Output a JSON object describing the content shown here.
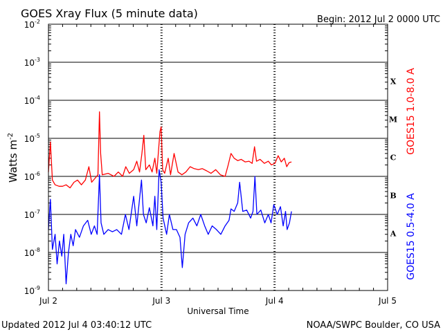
{
  "header": {
    "title": "GOES Xray Flux (5 minute data)",
    "begin": "Begin:  2012 Jul 2 0000 UTC"
  },
  "footer": {
    "updated": "Updated 2012 Jul  4 03:40:12 UTC",
    "source": "NOAA/SWPC Boulder, CO USA"
  },
  "chart_data": {
    "type": "line",
    "xlabel": "Universal Time",
    "ylabel_base": "Watts m",
    "ylabel_exp": "-2",
    "y_scale": "log",
    "ylim": [
      1e-09,
      0.01
    ],
    "xlim": [
      "2012-07-02T00:00Z",
      "2012-07-05T00:00Z"
    ],
    "grid": true,
    "x_ticks": [
      {
        "label": "Jul 2",
        "t": "2012-07-02T00:00Z"
      },
      {
        "label": "Jul 3",
        "t": "2012-07-03T00:00Z"
      },
      {
        "label": "Jul 4",
        "t": "2012-07-04T00:00Z"
      },
      {
        "label": "Jul 5",
        "t": "2012-07-05T00:00Z"
      }
    ],
    "y_ticks": [
      {
        "exp": -9
      },
      {
        "exp": -8
      },
      {
        "exp": -7
      },
      {
        "exp": -6
      },
      {
        "exp": -5
      },
      {
        "exp": -4
      },
      {
        "exp": -3
      },
      {
        "exp": -2
      }
    ],
    "flare_classes": [
      {
        "label": "X",
        "flux": 0.0001
      },
      {
        "label": "M",
        "flux": 1e-05
      },
      {
        "label": "C",
        "flux": 1e-06
      },
      {
        "label": "B",
        "flux": 1e-07
      },
      {
        "label": "A",
        "flux": 1e-08
      }
    ],
    "series": [
      {
        "name": "GOES15 1.0-8.0 A",
        "color": "#ff0000",
        "points": [
          [
            "2012-07-02T00:00Z",
            1.3e-06
          ],
          [
            "2012-07-02T00:25Z",
            8e-06
          ],
          [
            "2012-07-02T00:50Z",
            8e-07
          ],
          [
            "2012-07-02T01:25Z",
            6e-07
          ],
          [
            "2012-07-02T02:15Z",
            5.5e-07
          ],
          [
            "2012-07-02T03:00Z",
            5.5e-07
          ],
          [
            "2012-07-02T03:45Z",
            6e-07
          ],
          [
            "2012-07-02T04:35Z",
            5e-07
          ],
          [
            "2012-07-02T05:25Z",
            7e-07
          ],
          [
            "2012-07-02T06:10Z",
            8e-07
          ],
          [
            "2012-07-02T07:00Z",
            6e-07
          ],
          [
            "2012-07-02T07:50Z",
            8e-07
          ],
          [
            "2012-07-02T08:35Z",
            1.8e-06
          ],
          [
            "2012-07-02T09:10Z",
            7e-07
          ],
          [
            "2012-07-02T09:55Z",
            9e-07
          ],
          [
            "2012-07-02T10:30Z",
            1.1e-06
          ],
          [
            "2012-07-02T10:50Z",
            5e-05
          ],
          [
            "2012-07-02T11:05Z",
            4e-06
          ],
          [
            "2012-07-02T11:25Z",
            1.1e-06
          ],
          [
            "2012-07-02T12:40Z",
            1.2e-06
          ],
          [
            "2012-07-02T13:55Z",
            1e-06
          ],
          [
            "2012-07-02T14:50Z",
            1.3e-06
          ],
          [
            "2012-07-02T15:45Z",
            1e-06
          ],
          [
            "2012-07-02T16:25Z",
            1.8e-06
          ],
          [
            "2012-07-02T17:10Z",
            1.2e-06
          ],
          [
            "2012-07-02T18:05Z",
            1.5e-06
          ],
          [
            "2012-07-02T18:45Z",
            2.5e-06
          ],
          [
            "2012-07-02T19:20Z",
            1.3e-06
          ],
          [
            "2012-07-02T19:50Z",
            4e-06
          ],
          [
            "2012-07-02T20:15Z",
            1.2e-05
          ],
          [
            "2012-07-02T20:40Z",
            1.5e-06
          ],
          [
            "2012-07-02T21:25Z",
            2e-06
          ],
          [
            "2012-07-02T22:00Z",
            1.3e-06
          ],
          [
            "2012-07-02T22:35Z",
            3e-06
          ],
          [
            "2012-07-02T23:00Z",
            1.2e-06
          ],
          [
            "2012-07-02T23:40Z",
            1.5e-05
          ],
          [
            "2012-07-02T23:55Z",
            2e-05
          ],
          [
            "2012-07-03T00:15Z",
            1.5e-06
          ],
          [
            "2012-07-03T00:40Z",
            1.2e-06
          ],
          [
            "2012-07-03T01:25Z",
            3e-06
          ],
          [
            "2012-07-03T01:55Z",
            1.1e-06
          ],
          [
            "2012-07-03T02:40Z",
            4e-06
          ],
          [
            "2012-07-03T03:30Z",
            1.3e-06
          ],
          [
            "2012-07-03T04:20Z",
            1.1e-06
          ],
          [
            "2012-07-03T05:10Z",
            1.3e-06
          ],
          [
            "2012-07-03T06:05Z",
            1.8e-06
          ],
          [
            "2012-07-03T06:55Z",
            1.6e-06
          ],
          [
            "2012-07-03T07:50Z",
            1.5e-06
          ],
          [
            "2012-07-03T08:40Z",
            1.6e-06
          ],
          [
            "2012-07-03T09:35Z",
            1.4e-06
          ],
          [
            "2012-07-03T10:30Z",
            1.2e-06
          ],
          [
            "2012-07-03T11:30Z",
            1.5e-06
          ],
          [
            "2012-07-03T12:30Z",
            1.1e-06
          ],
          [
            "2012-07-03T13:30Z",
            1e-06
          ],
          [
            "2012-07-03T14:10Z",
            2e-06
          ],
          [
            "2012-07-03T14:45Z",
            4e-06
          ],
          [
            "2012-07-03T15:25Z",
            3e-06
          ],
          [
            "2012-07-03T16:10Z",
            2.6e-06
          ],
          [
            "2012-07-03T16:55Z",
            2.8e-06
          ],
          [
            "2012-07-03T17:45Z",
            2.4e-06
          ],
          [
            "2012-07-03T18:35Z",
            2.5e-06
          ],
          [
            "2012-07-03T19:15Z",
            2.2e-06
          ],
          [
            "2012-07-03T19:45Z",
            6e-06
          ],
          [
            "2012-07-03T20:10Z",
            2.5e-06
          ],
          [
            "2012-07-03T20:55Z",
            2.8e-06
          ],
          [
            "2012-07-03T21:50Z",
            2.2e-06
          ],
          [
            "2012-07-03T22:40Z",
            2.5e-06
          ],
          [
            "2012-07-03T23:20Z",
            2e-06
          ],
          [
            "2012-07-04T00:05Z",
            2.2e-06
          ],
          [
            "2012-07-04T00:45Z",
            3.5e-06
          ],
          [
            "2012-07-04T01:25Z",
            2.4e-06
          ],
          [
            "2012-07-04T02:05Z",
            3e-06
          ],
          [
            "2012-07-04T02:35Z",
            1.8e-06
          ],
          [
            "2012-07-04T03:05Z",
            2.3e-06
          ],
          [
            "2012-07-04T03:35Z",
            2.4e-06
          ]
        ]
      },
      {
        "name": "GOES15 0.5-4.0 A",
        "color": "#0000ff",
        "points": [
          [
            "2012-07-02T00:00Z",
            4e-08
          ],
          [
            "2012-07-02T00:25Z",
            2.5e-07
          ],
          [
            "2012-07-02T00:50Z",
            1.2e-08
          ],
          [
            "2012-07-02T01:25Z",
            3e-08
          ],
          [
            "2012-07-02T01:50Z",
            5e-09
          ],
          [
            "2012-07-02T02:20Z",
            2e-08
          ],
          [
            "2012-07-02T02:50Z",
            8e-09
          ],
          [
            "2012-07-02T03:15Z",
            3e-08
          ],
          [
            "2012-07-02T03:45Z",
            1.5e-09
          ],
          [
            "2012-07-02T04:15Z",
            1e-08
          ],
          [
            "2012-07-02T04:45Z",
            3e-08
          ],
          [
            "2012-07-02T05:15Z",
            1.5e-08
          ],
          [
            "2012-07-02T05:45Z",
            4e-08
          ],
          [
            "2012-07-02T06:35Z",
            2.5e-08
          ],
          [
            "2012-07-02T07:25Z",
            5e-08
          ],
          [
            "2012-07-02T08:20Z",
            7e-08
          ],
          [
            "2012-07-02T09:05Z",
            3e-08
          ],
          [
            "2012-07-02T09:45Z",
            5e-08
          ],
          [
            "2012-07-02T10:20Z",
            3e-08
          ],
          [
            "2012-07-02T10:50Z",
            1.1e-06
          ],
          [
            "2012-07-02T11:10Z",
            6e-08
          ],
          [
            "2012-07-02T11:45Z",
            3e-08
          ],
          [
            "2012-07-02T12:40Z",
            4e-08
          ],
          [
            "2012-07-02T13:35Z",
            3.5e-08
          ],
          [
            "2012-07-02T14:30Z",
            4e-08
          ],
          [
            "2012-07-02T15:30Z",
            3e-08
          ],
          [
            "2012-07-02T16:20Z",
            1e-07
          ],
          [
            "2012-07-02T17:05Z",
            4e-08
          ],
          [
            "2012-07-02T18:05Z",
            3e-07
          ],
          [
            "2012-07-02T18:45Z",
            5e-08
          ],
          [
            "2012-07-02T19:15Z",
            2e-07
          ],
          [
            "2012-07-02T19:45Z",
            8e-07
          ],
          [
            "2012-07-02T20:10Z",
            1e-07
          ],
          [
            "2012-07-02T20:45Z",
            6e-08
          ],
          [
            "2012-07-02T21:25Z",
            1.5e-07
          ],
          [
            "2012-07-02T22:10Z",
            5e-08
          ],
          [
            "2012-07-02T22:35Z",
            3e-07
          ],
          [
            "2012-07-02T23:00Z",
            4e-08
          ],
          [
            "2012-07-02T23:30Z",
            1.5e-06
          ],
          [
            "2012-07-02T23:55Z",
            7e-07
          ],
          [
            "2012-07-03T00:20Z",
            8e-08
          ],
          [
            "2012-07-03T01:05Z",
            3e-08
          ],
          [
            "2012-07-03T01:40Z",
            1e-07
          ],
          [
            "2012-07-03T02:25Z",
            4e-08
          ],
          [
            "2012-07-03T03:10Z",
            4e-08
          ],
          [
            "2012-07-03T03:55Z",
            2.5e-08
          ],
          [
            "2012-07-03T04:25Z",
            4e-09
          ],
          [
            "2012-07-03T05:00Z",
            3e-08
          ],
          [
            "2012-07-03T05:45Z",
            6e-08
          ],
          [
            "2012-07-03T06:40Z",
            8e-08
          ],
          [
            "2012-07-03T07:30Z",
            5e-08
          ],
          [
            "2012-07-03T08:20Z",
            1e-07
          ],
          [
            "2012-07-03T09:10Z",
            5e-08
          ],
          [
            "2012-07-03T09:55Z",
            3e-08
          ],
          [
            "2012-07-03T10:45Z",
            5e-08
          ],
          [
            "2012-07-03T11:40Z",
            4e-08
          ],
          [
            "2012-07-03T12:35Z",
            3e-08
          ],
          [
            "2012-07-03T13:30Z",
            5e-08
          ],
          [
            "2012-07-03T14:20Z",
            7e-08
          ],
          [
            "2012-07-03T14:45Z",
            1.4e-07
          ],
          [
            "2012-07-03T15:25Z",
            1.2e-07
          ],
          [
            "2012-07-03T16:10Z",
            2e-07
          ],
          [
            "2012-07-03T16:35Z",
            7e-07
          ],
          [
            "2012-07-03T17:15Z",
            1.2e-07
          ],
          [
            "2012-07-03T18:05Z",
            1.3e-07
          ],
          [
            "2012-07-03T18:55Z",
            8e-08
          ],
          [
            "2012-07-03T19:25Z",
            1.2e-07
          ],
          [
            "2012-07-03T19:50Z",
            1e-06
          ],
          [
            "2012-07-03T20:15Z",
            1e-07
          ],
          [
            "2012-07-03T21:05Z",
            1.3e-07
          ],
          [
            "2012-07-03T21:55Z",
            6e-08
          ],
          [
            "2012-07-03T22:40Z",
            1e-07
          ],
          [
            "2012-07-03T23:15Z",
            6e-08
          ],
          [
            "2012-07-03T23:50Z",
            1.8e-07
          ],
          [
            "2012-07-04T00:35Z",
            1e-07
          ],
          [
            "2012-07-04T01:15Z",
            1.6e-07
          ],
          [
            "2012-07-04T01:50Z",
            5e-08
          ],
          [
            "2012-07-04T02:20Z",
            1.2e-07
          ],
          [
            "2012-07-04T02:40Z",
            4e-08
          ],
          [
            "2012-07-04T03:10Z",
            6e-08
          ],
          [
            "2012-07-04T03:35Z",
            1.2e-07
          ]
        ]
      }
    ]
  }
}
